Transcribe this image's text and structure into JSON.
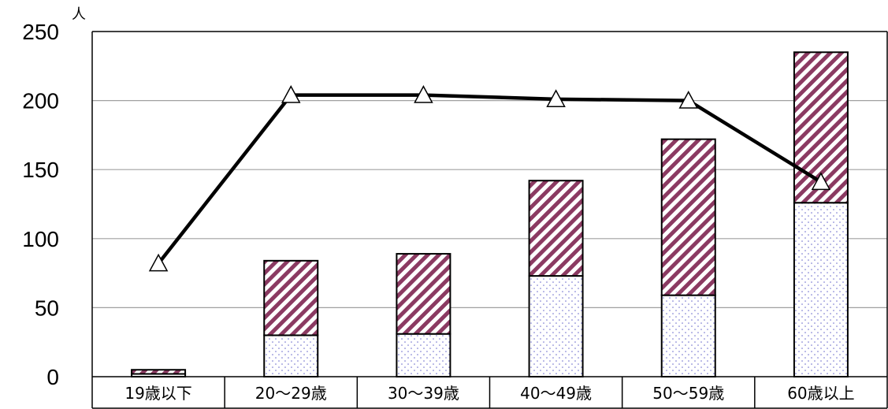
{
  "chart_data": {
    "type": "bar",
    "stacked": true,
    "unit_label": "人",
    "categories": [
      "19歳以下",
      "20～29歳",
      "30～39歳",
      "40～49歳",
      "50～59歳",
      "60歳以上"
    ],
    "series": [
      {
        "kind": "bar",
        "pattern": "dots",
        "values": [
          2,
          30,
          31,
          73,
          59,
          126
        ]
      },
      {
        "kind": "bar",
        "pattern": "diagonal-stripes",
        "values": [
          3,
          54,
          58,
          69,
          113,
          109
        ]
      },
      {
        "kind": "line",
        "marker": "triangle",
        "values": [
          82,
          204,
          204,
          201,
          200,
          141
        ]
      }
    ],
    "ylim": [
      0,
      250
    ],
    "yticks": [
      "0",
      "50",
      "100",
      "150",
      "200",
      "250"
    ],
    "grid": true,
    "colors": {
      "stripe": "#8B3A62",
      "dot": "#6B6BCC",
      "line": "#000000",
      "grid": "#A0A0A0"
    }
  }
}
